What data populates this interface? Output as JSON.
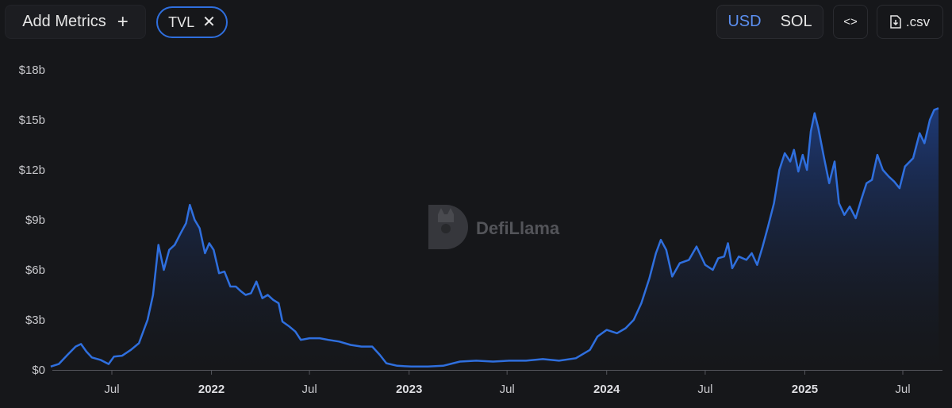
{
  "toolbar": {
    "add_metrics_label": "Add Metrics",
    "add_metrics_icon": "plus-icon",
    "metric_chip_label": "TVL",
    "metric_chip_icon": "close-icon",
    "currency_options": [
      "USD",
      "SOL"
    ],
    "currency_selected": "USD",
    "embed_icon": "code-brackets-icon",
    "csv_icon": "download-file-icon",
    "csv_label": ".csv"
  },
  "watermark": {
    "text": "DefiLlama",
    "logo_icon": "llama-logo-icon"
  },
  "colors": {
    "line": "#2f6fde",
    "background": "#16171a",
    "accent": "#5b8ff0"
  },
  "chart_data": {
    "type": "area",
    "title": "",
    "xlabel": "",
    "ylabel": "",
    "x_tick_labels": [
      "Jul",
      "2022",
      "Jul",
      "2023",
      "Jul",
      "2024",
      "Jul",
      "2025",
      "Jul"
    ],
    "x_tick_dates": [
      "2021-07-01",
      "2022-01-01",
      "2022-07-01",
      "2023-01-01",
      "2023-07-01",
      "2024-01-01",
      "2024-07-01",
      "2025-01-01",
      "2025-07-01"
    ],
    "bold_ticks": [
      "2022",
      "2023",
      "2024",
      "2025"
    ],
    "y_tick_labels": [
      "$0",
      "$3b",
      "$6b",
      "$9b",
      "$12b",
      "$15b",
      "$18b"
    ],
    "y_tick_values": [
      0,
      3,
      6,
      9,
      12,
      15,
      18
    ],
    "ylim": [
      0,
      18
    ],
    "y_unit": "billion USD",
    "grid": false,
    "series": [
      {
        "color": "#2f6fde",
        "points": [
          [
            "2021-03-10",
            0.2
          ],
          [
            "2021-03-25",
            0.35
          ],
          [
            "2021-04-10",
            0.9
          ],
          [
            "2021-04-25",
            1.4
          ],
          [
            "2021-05-05",
            1.55
          ],
          [
            "2021-05-15",
            1.1
          ],
          [
            "2021-05-25",
            0.75
          ],
          [
            "2021-06-10",
            0.6
          ],
          [
            "2021-06-25",
            0.35
          ],
          [
            "2021-07-05",
            0.8
          ],
          [
            "2021-07-20",
            0.85
          ],
          [
            "2021-08-05",
            1.2
          ],
          [
            "2021-08-20",
            1.6
          ],
          [
            "2021-09-05",
            3.0
          ],
          [
            "2021-09-15",
            4.5
          ],
          [
            "2021-09-25",
            7.5
          ],
          [
            "2021-10-05",
            6.0
          ],
          [
            "2021-10-15",
            7.2
          ],
          [
            "2021-10-25",
            7.5
          ],
          [
            "2021-11-05",
            8.2
          ],
          [
            "2021-11-15",
            8.8
          ],
          [
            "2021-11-22",
            9.9
          ],
          [
            "2021-12-01",
            9.0
          ],
          [
            "2021-12-10",
            8.5
          ],
          [
            "2021-12-20",
            7.0
          ],
          [
            "2021-12-28",
            7.6
          ],
          [
            "2022-01-05",
            7.2
          ],
          [
            "2022-01-15",
            5.8
          ],
          [
            "2022-01-25",
            5.9
          ],
          [
            "2022-02-05",
            5.0
          ],
          [
            "2022-02-15",
            5.0
          ],
          [
            "2022-02-25",
            4.7
          ],
          [
            "2022-03-05",
            4.5
          ],
          [
            "2022-03-15",
            4.6
          ],
          [
            "2022-03-25",
            5.3
          ],
          [
            "2022-04-05",
            4.3
          ],
          [
            "2022-04-15",
            4.5
          ],
          [
            "2022-04-25",
            4.2
          ],
          [
            "2022-05-05",
            4.0
          ],
          [
            "2022-05-12",
            2.9
          ],
          [
            "2022-05-25",
            2.6
          ],
          [
            "2022-06-05",
            2.3
          ],
          [
            "2022-06-15",
            1.8
          ],
          [
            "2022-07-01",
            1.9
          ],
          [
            "2022-07-20",
            1.9
          ],
          [
            "2022-08-05",
            1.8
          ],
          [
            "2022-08-25",
            1.7
          ],
          [
            "2022-09-15",
            1.5
          ],
          [
            "2022-10-05",
            1.4
          ],
          [
            "2022-10-25",
            1.4
          ],
          [
            "2022-11-08",
            0.9
          ],
          [
            "2022-11-20",
            0.4
          ],
          [
            "2022-12-10",
            0.25
          ],
          [
            "2023-01-05",
            0.2
          ],
          [
            "2023-02-05",
            0.2
          ],
          [
            "2023-03-05",
            0.25
          ],
          [
            "2023-04-05",
            0.5
          ],
          [
            "2023-05-05",
            0.55
          ],
          [
            "2023-06-05",
            0.5
          ],
          [
            "2023-07-05",
            0.55
          ],
          [
            "2023-08-05",
            0.55
          ],
          [
            "2023-09-05",
            0.65
          ],
          [
            "2023-10-05",
            0.55
          ],
          [
            "2023-11-05",
            0.7
          ],
          [
            "2023-12-01",
            1.2
          ],
          [
            "2023-12-15",
            2.0
          ],
          [
            "2024-01-01",
            2.4
          ],
          [
            "2024-01-20",
            2.2
          ],
          [
            "2024-02-05",
            2.5
          ],
          [
            "2024-02-20",
            3.0
          ],
          [
            "2024-03-05",
            4.0
          ],
          [
            "2024-03-20",
            5.5
          ],
          [
            "2024-04-01",
            7.0
          ],
          [
            "2024-04-10",
            7.8
          ],
          [
            "2024-04-20",
            7.2
          ],
          [
            "2024-05-01",
            5.6
          ],
          [
            "2024-05-15",
            6.4
          ],
          [
            "2024-06-01",
            6.6
          ],
          [
            "2024-06-15",
            7.4
          ],
          [
            "2024-07-01",
            6.3
          ],
          [
            "2024-07-15",
            6.0
          ],
          [
            "2024-07-25",
            6.7
          ],
          [
            "2024-08-05",
            6.8
          ],
          [
            "2024-08-12",
            7.6
          ],
          [
            "2024-08-20",
            6.1
          ],
          [
            "2024-09-01",
            6.8
          ],
          [
            "2024-09-15",
            6.6
          ],
          [
            "2024-09-25",
            7.0
          ],
          [
            "2024-10-05",
            6.3
          ],
          [
            "2024-10-15",
            7.4
          ],
          [
            "2024-10-25",
            8.6
          ],
          [
            "2024-11-05",
            10.0
          ],
          [
            "2024-11-15",
            12.0
          ],
          [
            "2024-11-25",
            13.0
          ],
          [
            "2024-12-05",
            12.5
          ],
          [
            "2024-12-12",
            13.2
          ],
          [
            "2024-12-20",
            11.9
          ],
          [
            "2024-12-28",
            12.9
          ],
          [
            "2025-01-05",
            12.0
          ],
          [
            "2025-01-12",
            14.3
          ],
          [
            "2025-01-19",
            15.4
          ],
          [
            "2025-01-26",
            14.5
          ],
          [
            "2025-02-05",
            12.8
          ],
          [
            "2025-02-15",
            11.2
          ],
          [
            "2025-02-25",
            12.5
          ],
          [
            "2025-03-05",
            10.0
          ],
          [
            "2025-03-15",
            9.3
          ],
          [
            "2025-03-25",
            9.8
          ],
          [
            "2025-04-05",
            9.1
          ],
          [
            "2025-04-15",
            10.2
          ],
          [
            "2025-04-25",
            11.2
          ],
          [
            "2025-05-05",
            11.4
          ],
          [
            "2025-05-15",
            12.9
          ],
          [
            "2025-05-25",
            12.0
          ],
          [
            "2025-06-05",
            11.6
          ],
          [
            "2025-06-15",
            11.3
          ],
          [
            "2025-06-25",
            10.9
          ],
          [
            "2025-07-05",
            12.2
          ],
          [
            "2025-07-20",
            12.7
          ],
          [
            "2025-08-01",
            14.2
          ],
          [
            "2025-08-10",
            13.6
          ],
          [
            "2025-08-20",
            15.0
          ],
          [
            "2025-08-28",
            15.6
          ],
          [
            "2025-09-05",
            15.7
          ]
        ]
      }
    ]
  }
}
